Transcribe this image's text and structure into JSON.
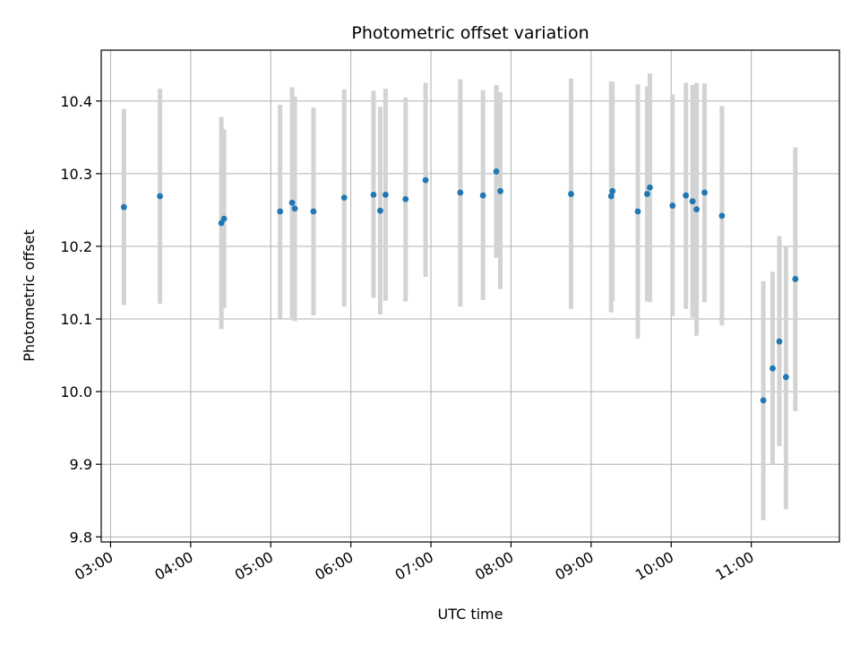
{
  "chart_data": {
    "type": "scatter",
    "title": "Photometric offset variation",
    "xlabel": "UTC time",
    "ylabel": "Photometric offset",
    "x_ticks": [
      "03:00",
      "04:00",
      "05:00",
      "06:00",
      "07:00",
      "08:00",
      "09:00",
      "10:00",
      "11:00"
    ],
    "y_ticks": [
      "9.8",
      "9.9",
      "10.0",
      "10.1",
      "10.2",
      "10.3",
      "10.4"
    ],
    "xlim": [
      "02:53",
      "12:06"
    ],
    "ylim": [
      9.793,
      10.47
    ],
    "grid": true,
    "colors": {
      "marker": "#1f77b4",
      "errorbar": "#d3d3d3",
      "grid": "#b0b0b0"
    },
    "series": [
      {
        "points": [
          {
            "x": "03:10",
            "y": 10.254,
            "ylo": 10.119,
            "yhi": 10.389
          },
          {
            "x": "03:37",
            "y": 10.269,
            "ylo": 10.121,
            "yhi": 10.417
          },
          {
            "x": "04:23",
            "y": 10.232,
            "ylo": 10.086,
            "yhi": 10.378
          },
          {
            "x": "04:25",
            "y": 10.238,
            "ylo": 10.115,
            "yhi": 10.361
          },
          {
            "x": "05:07",
            "y": 10.248,
            "ylo": 10.101,
            "yhi": 10.395
          },
          {
            "x": "05:16",
            "y": 10.26,
            "ylo": 10.1,
            "yhi": 10.419
          },
          {
            "x": "05:18",
            "y": 10.252,
            "ylo": 10.097,
            "yhi": 10.406
          },
          {
            "x": "05:32",
            "y": 10.248,
            "ylo": 10.105,
            "yhi": 10.391
          },
          {
            "x": "05:55",
            "y": 10.267,
            "ylo": 10.117,
            "yhi": 10.416
          },
          {
            "x": "06:17",
            "y": 10.271,
            "ylo": 10.129,
            "yhi": 10.414
          },
          {
            "x": "06:22",
            "y": 10.249,
            "ylo": 10.106,
            "yhi": 10.392
          },
          {
            "x": "06:26",
            "y": 10.271,
            "ylo": 10.125,
            "yhi": 10.417
          },
          {
            "x": "06:41",
            "y": 10.265,
            "ylo": 10.124,
            "yhi": 10.405
          },
          {
            "x": "06:56",
            "y": 10.291,
            "ylo": 10.158,
            "yhi": 10.425
          },
          {
            "x": "07:22",
            "y": 10.274,
            "ylo": 10.117,
            "yhi": 10.43
          },
          {
            "x": "07:39",
            "y": 10.27,
            "ylo": 10.126,
            "yhi": 10.415
          },
          {
            "x": "07:49",
            "y": 10.303,
            "ylo": 10.184,
            "yhi": 10.422
          },
          {
            "x": "07:52",
            "y": 10.276,
            "ylo": 10.141,
            "yhi": 10.412
          },
          {
            "x": "08:45",
            "y": 10.272,
            "ylo": 10.114,
            "yhi": 10.431
          },
          {
            "x": "09:15",
            "y": 10.269,
            "ylo": 10.109,
            "yhi": 10.427
          },
          {
            "x": "09:16",
            "y": 10.276,
            "ylo": 10.125,
            "yhi": 10.426
          },
          {
            "x": "09:35",
            "y": 10.248,
            "ylo": 10.073,
            "yhi": 10.423
          },
          {
            "x": "09:42",
            "y": 10.272,
            "ylo": 10.124,
            "yhi": 10.42
          },
          {
            "x": "09:44",
            "y": 10.281,
            "ylo": 10.123,
            "yhi": 10.438
          },
          {
            "x": "10:01",
            "y": 10.256,
            "ylo": 10.104,
            "yhi": 10.409
          },
          {
            "x": "10:11",
            "y": 10.27,
            "ylo": 10.114,
            "yhi": 10.425
          },
          {
            "x": "10:16",
            "y": 10.262,
            "ylo": 10.102,
            "yhi": 10.422
          },
          {
            "x": "10:19",
            "y": 10.251,
            "ylo": 10.077,
            "yhi": 10.425
          },
          {
            "x": "10:25",
            "y": 10.274,
            "ylo": 10.123,
            "yhi": 10.424
          },
          {
            "x": "10:38",
            "y": 10.242,
            "ylo": 10.091,
            "yhi": 10.393
          },
          {
            "x": "11:09",
            "y": 9.988,
            "ylo": 9.823,
            "yhi": 10.152
          },
          {
            "x": "11:16",
            "y": 10.032,
            "ylo": 9.9,
            "yhi": 10.165
          },
          {
            "x": "11:21",
            "y": 10.069,
            "ylo": 9.925,
            "yhi": 10.214
          },
          {
            "x": "11:26",
            "y": 10.02,
            "ylo": 9.838,
            "yhi": 10.2
          },
          {
            "x": "11:33",
            "y": 10.155,
            "ylo": 9.973,
            "yhi": 10.336
          }
        ]
      }
    ]
  }
}
